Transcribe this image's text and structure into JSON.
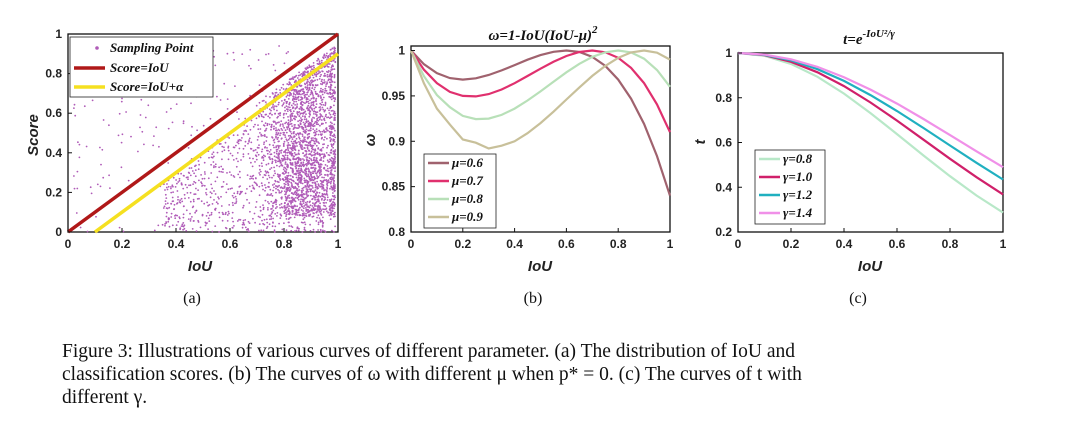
{
  "panels": [
    {
      "id": "a",
      "subcaption": "(a)",
      "title": "",
      "xlabel": "IoU",
      "ylabel": "Score",
      "xlim": [
        0,
        1
      ],
      "ylim": [
        0,
        1
      ],
      "xticks": [
        "0",
        "0.2",
        "0.4",
        "0.6",
        "0.8",
        "1"
      ],
      "yticks": [
        "0",
        "0.2",
        "0.4",
        "0.6",
        "0.8",
        "1"
      ],
      "legend": [
        "Sampling Point",
        "Score=IoU",
        "Score=IoU+α"
      ]
    },
    {
      "id": "b",
      "subcaption": "(b)",
      "title": "ω=1-IoU(IoU-μ)",
      "title_sup": "2",
      "xlabel": "IoU",
      "ylabel": "ω",
      "xticks": [
        "0",
        "0.2",
        "0.4",
        "0.6",
        "0.8",
        "1"
      ],
      "yticks": [
        "0.8",
        "0.85",
        "0.9",
        "0.95",
        "1"
      ],
      "legend": [
        "μ=0.6",
        "μ=0.7",
        "μ=0.8",
        "μ=0.9"
      ]
    },
    {
      "id": "c",
      "subcaption": "(c)",
      "title": "t=e",
      "title_sup": "-IoU²/γ",
      "xlabel": "IoU",
      "ylabel": "t",
      "xticks": [
        "0",
        "0.2",
        "0.4",
        "0.6",
        "0.8",
        "1"
      ],
      "yticks": [
        "0.2",
        "0.4",
        "0.6",
        "0.8",
        "1"
      ],
      "legend": [
        "γ=0.8",
        "γ=1.0",
        "γ=1.2",
        "γ=1.4"
      ]
    }
  ],
  "caption": {
    "line1": "Figure 3: Illustrations of various curves of different parameter. (a) The distribution of IoU and",
    "line2": "classification scores. (b) The curves of ω with different μ when p* = 0. (c) The curves of t with",
    "line3": "different γ."
  },
  "colors": {
    "scatter": "#b05cb8",
    "score_iou": "#b01818",
    "score_iou_alpha": "#f5e020",
    "b_series": [
      "#a0626e",
      "#e0306e",
      "#b8e0b8",
      "#c8c09a"
    ],
    "c_series": [
      "#b8e8c8",
      "#d0206a",
      "#20b0c0",
      "#f090e8"
    ]
  },
  "chart_data": [
    {
      "type": "scatter",
      "title": "",
      "xlabel": "IoU",
      "ylabel": "Score",
      "xlim": [
        0,
        1
      ],
      "ylim": [
        0,
        1
      ],
      "grid": false,
      "legend_position": "top-left",
      "series": [
        {
          "name": "Sampling Point",
          "kind": "scatter",
          "description_count": 3000,
          "points_sample": [
            [
              0.1,
              0.55
            ],
            [
              0.25,
              0.45
            ],
            [
              0.4,
              0.15
            ],
            [
              0.6,
              0.3
            ],
            [
              0.7,
              0.4
            ],
            [
              0.8,
              0.3
            ],
            [
              0.85,
              0.5
            ],
            [
              0.9,
              0.45
            ],
            [
              0.95,
              0.35
            ],
            [
              0.9,
              0.8
            ],
            [
              0.95,
              0.6
            ],
            [
              0.75,
              0.1
            ]
          ]
        },
        {
          "name": "Score=IoU",
          "kind": "line",
          "x": [
            0,
            1
          ],
          "y": [
            0,
            1
          ]
        },
        {
          "name": "Score=IoU+α",
          "kind": "line",
          "x": [
            0.1,
            1
          ],
          "y": [
            0,
            0.9
          ]
        }
      ]
    },
    {
      "type": "line",
      "title": "ω=1-IoU(IoU-μ)^2",
      "xlabel": "IoU",
      "ylabel": "ω",
      "xlim": [
        0,
        1
      ],
      "ylim": [
        0.8,
        1.005
      ],
      "grid": false,
      "legend_position": "bottom-left",
      "x": [
        0,
        0.05,
        0.1,
        0.15,
        0.2,
        0.25,
        0.3,
        0.35,
        0.4,
        0.45,
        0.5,
        0.55,
        0.6,
        0.65,
        0.7,
        0.75,
        0.8,
        0.85,
        0.9,
        0.95,
        1
      ],
      "series": [
        {
          "name": "μ=0.6",
          "values": [
            1,
            0.9849,
            0.975,
            0.9696,
            0.968,
            0.9694,
            0.973,
            0.9781,
            0.984,
            0.9899,
            0.995,
            0.9986,
            1,
            0.9984,
            0.993,
            0.9831,
            0.968,
            0.9469,
            0.919,
            0.8836,
            0.84
          ]
        },
        {
          "name": "μ=0.7",
          "values": [
            1,
            0.9789,
            0.964,
            0.9544,
            0.95,
            0.9494,
            0.952,
            0.9571,
            0.964,
            0.9719,
            0.98,
            0.9876,
            0.994,
            0.9984,
            1,
            0.9981,
            0.992,
            0.9809,
            0.964,
            0.9406,
            0.91
          ]
        },
        {
          "name": "μ=0.8",
          "values": [
            1,
            0.9718,
            0.951,
            0.9376,
            0.928,
            0.9244,
            0.925,
            0.9291,
            0.936,
            0.9449,
            0.955,
            0.9656,
            0.976,
            0.9854,
            0.993,
            0.9981,
            1,
            0.9979,
            0.991,
            0.9786,
            0.96
          ]
        },
        {
          "name": "μ=0.9",
          "values": [
            1,
            0.9639,
            0.936,
            0.9184,
            0.902,
            0.8984,
            0.892,
            0.8951,
            0.9,
            0.9089,
            0.92,
            0.9326,
            0.946,
            0.9594,
            0.972,
            0.9831,
            0.992,
            0.9979,
            1,
            0.9976,
            0.99
          ]
        }
      ]
    },
    {
      "type": "line",
      "title": "t=e^(-IoU^2/γ)",
      "xlabel": "IoU",
      "ylabel": "t",
      "xlim": [
        0,
        1
      ],
      "ylim": [
        0.2,
        1
      ],
      "grid": false,
      "legend_position": "bottom-left",
      "x": [
        0,
        0.1,
        0.2,
        0.3,
        0.4,
        0.5,
        0.6,
        0.7,
        0.8,
        0.9,
        1
      ],
      "series": [
        {
          "name": "γ=0.8",
          "values": [
            1,
            0.9876,
            0.9512,
            0.8936,
            0.8187,
            0.7316,
            0.6376,
            0.5417,
            0.4493,
            0.3633,
            0.2865
          ]
        },
        {
          "name": "γ=1.0",
          "values": [
            1,
            0.99,
            0.9608,
            0.9139,
            0.8521,
            0.7788,
            0.6977,
            0.6126,
            0.5273,
            0.4449,
            0.3679
          ]
        },
        {
          "name": "γ=1.2",
          "values": [
            1,
            0.9917,
            0.9672,
            0.9277,
            0.8752,
            0.8119,
            0.7408,
            0.665,
            0.5866,
            0.5092,
            0.4346
          ]
        },
        {
          "name": "γ=1.4",
          "values": [
            1,
            0.9929,
            0.9718,
            0.9377,
            0.892,
            0.8365,
            0.7738,
            0.7049,
            0.6332,
            0.5606,
            0.4895
          ]
        }
      ]
    }
  ]
}
